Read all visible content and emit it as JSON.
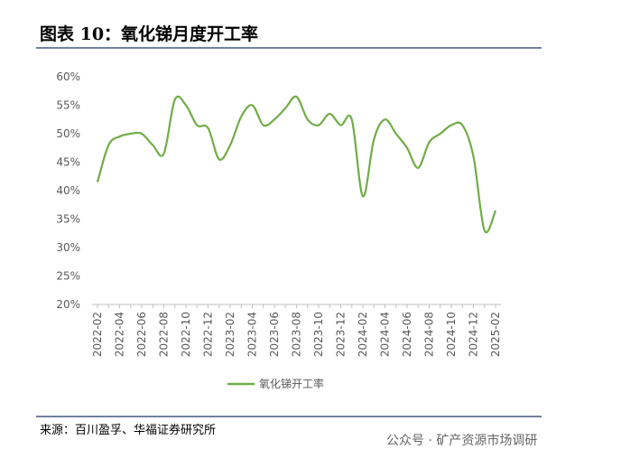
{
  "chart_data": {
    "type": "line",
    "title": "图表 10：氧化锑月度开工率",
    "source": "来源：百川盈孚、华福证券研究所",
    "watermark": "公众号 · 矿产资源市场调研",
    "categories": [
      "2022-02",
      null,
      "2022-04",
      null,
      "2022-06",
      null,
      "2022-08",
      null,
      "2022-10",
      null,
      "2022-12",
      null,
      "2023-02",
      null,
      "2023-04",
      null,
      "2023-06",
      null,
      "2023-08",
      null,
      "2023-10",
      null,
      "2023-12",
      null,
      "2024-02",
      null,
      "2024-04",
      null,
      "2024-06",
      null,
      "2024-08",
      null,
      "2024-10",
      null,
      "2024-12",
      null,
      "2025-02"
    ],
    "series": [
      {
        "name": "氧化锑开工率",
        "color": "#70ad47",
        "values": [
          41.5,
          48,
          49.5,
          50,
          50,
          48,
          46.5,
          56,
          55,
          51.5,
          51,
          45.5,
          48,
          53,
          55,
          51.5,
          52.5,
          54.5,
          56.5,
          52.5,
          51.5,
          53.5,
          51.5,
          52.5,
          39,
          49,
          52.5,
          50,
          47.5,
          44,
          48.5,
          50,
          51.5,
          51.5,
          46,
          33,
          36.5
        ]
      }
    ],
    "ylim": [
      20,
      60
    ],
    "yticks": [
      {
        "value": 20,
        "label": "20%"
      },
      {
        "value": 25,
        "label": "25%"
      },
      {
        "value": 30,
        "label": "30%"
      },
      {
        "value": 35,
        "label": "35%"
      },
      {
        "value": 40,
        "label": "40%"
      },
      {
        "value": 45,
        "label": "45%"
      },
      {
        "value": 50,
        "label": "50%"
      },
      {
        "value": 55,
        "label": "55%"
      },
      {
        "value": 60,
        "label": "60%"
      }
    ],
    "grid": false
  }
}
